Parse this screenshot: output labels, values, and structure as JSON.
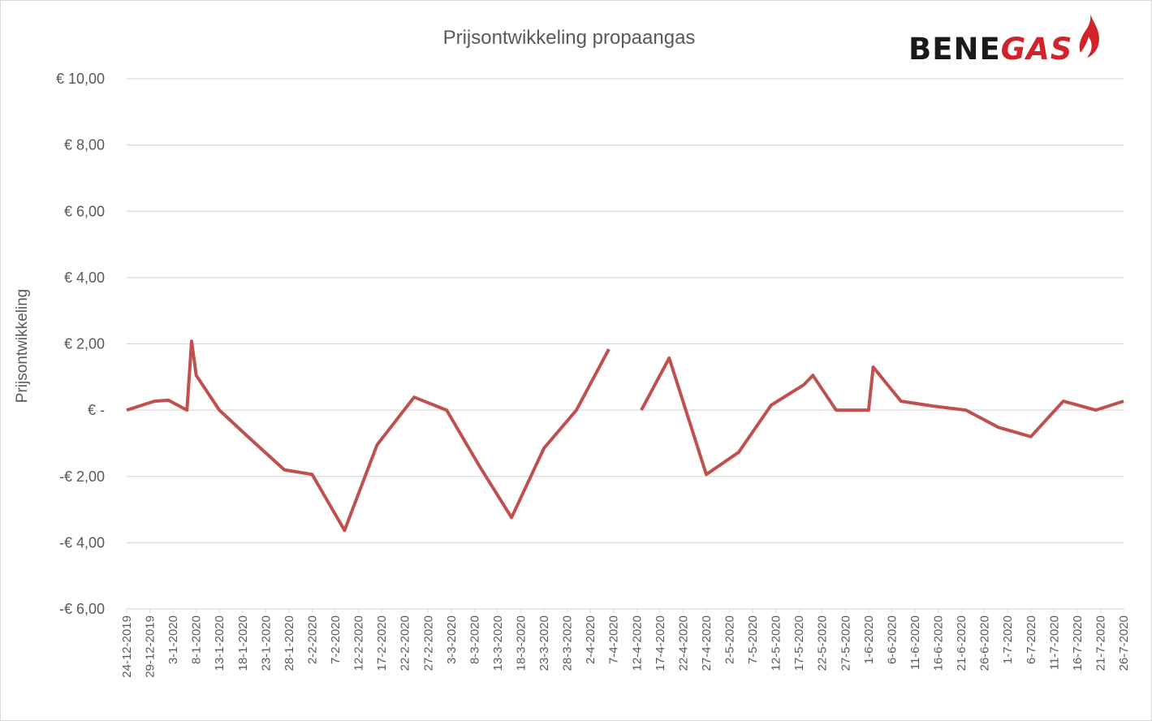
{
  "chart_data": {
    "type": "line",
    "title": "Prijsontwikkeling propaangas",
    "ylabel": "Prijsontwikkeling",
    "xlabel": "",
    "ylim": [
      -6,
      10
    ],
    "y_ticks": [
      10,
      8,
      6,
      4,
      2,
      0,
      -2,
      -4,
      -6
    ],
    "y_tick_labels": [
      "€ 10,00",
      "€ 8,00",
      "€ 6,00",
      "€ 4,00",
      "€ 2,00",
      "€ -",
      "-€ 2,00",
      "-€ 4,00",
      "-€ 6,00"
    ],
    "xlim": [
      "24-12-2019",
      "26-7-2020"
    ],
    "x_tick_labels": [
      "24-12-2019",
      "29-12-2019",
      "3-1-2020",
      "8-1-2020",
      "13-1-2020",
      "18-1-2020",
      "23-1-2020",
      "28-1-2020",
      "2-2-2020",
      "7-2-2020",
      "12-2-2020",
      "17-2-2020",
      "22-2-2020",
      "27-2-2020",
      "3-3-2020",
      "8-3-2020",
      "13-3-2020",
      "18-3-2020",
      "23-3-2020",
      "28-3-2020",
      "2-4-2020",
      "7-4-2020",
      "12-4-2020",
      "17-4-2020",
      "22-4-2020",
      "27-4-2020",
      "2-5-2020",
      "7-5-2020",
      "12-5-2020",
      "17-5-2020",
      "22-5-2020",
      "27-5-2020",
      "1-6-2020",
      "6-6-2020",
      "11-6-2020",
      "16-6-2020",
      "21-6-2020",
      "26-6-2020",
      "1-7-2020",
      "6-7-2020",
      "11-7-2020",
      "16-7-2020",
      "21-7-2020",
      "26-7-2020"
    ],
    "grid": true,
    "legend": "none",
    "series": [
      {
        "color": "#c0504d",
        "points": [
          [
            "24-12-2019",
            0
          ],
          [
            "30-12-2019",
            0.27
          ],
          [
            "2-1-2020",
            0.3
          ],
          [
            "6-1-2020",
            0
          ],
          [
            "7-1-2020",
            2.08
          ],
          [
            "8-1-2020",
            1.05
          ],
          [
            "13-1-2020",
            0
          ],
          [
            "19-1-2020",
            -0.78
          ],
          [
            "27-1-2020",
            -1.8
          ],
          [
            "2-2-2020",
            -1.94
          ],
          [
            "9-2-2020",
            -3.63
          ],
          [
            "16-2-2020",
            -1.05
          ],
          [
            "24-2-2020",
            0.39
          ],
          [
            "2-3-2020",
            0
          ],
          [
            "9-3-2020",
            -1.67
          ],
          [
            "16-3-2020",
            -3.24
          ],
          [
            "23-3-2020",
            -1.15
          ],
          [
            "30-3-2020",
            0
          ],
          [
            "6-4-2020",
            1.84
          ],
          [
            "10-4-2020",
            null
          ],
          [
            "13-4-2020",
            0
          ],
          [
            "19-4-2020",
            1.57
          ],
          [
            "27-4-2020",
            -1.94
          ],
          [
            "4-5-2020",
            -1.27
          ],
          [
            "11-5-2020",
            0.15
          ],
          [
            "18-5-2020",
            0.76
          ],
          [
            "20-5-2020",
            1.05
          ],
          [
            "25-5-2020",
            0
          ],
          [
            "1-6-2020",
            0
          ],
          [
            "2-6-2020",
            1.3
          ],
          [
            "8-6-2020",
            0.27
          ],
          [
            "15-6-2020",
            0.12
          ],
          [
            "22-6-2020",
            0
          ],
          [
            "29-6-2020",
            -0.52
          ],
          [
            "6-7-2020",
            -0.8
          ],
          [
            "13-7-2020",
            0.27
          ],
          [
            "20-7-2020",
            0
          ],
          [
            "26-7-2020",
            0.27
          ]
        ]
      }
    ]
  },
  "logo": {
    "text_dark": "BENE",
    "text_red": "GAS"
  }
}
